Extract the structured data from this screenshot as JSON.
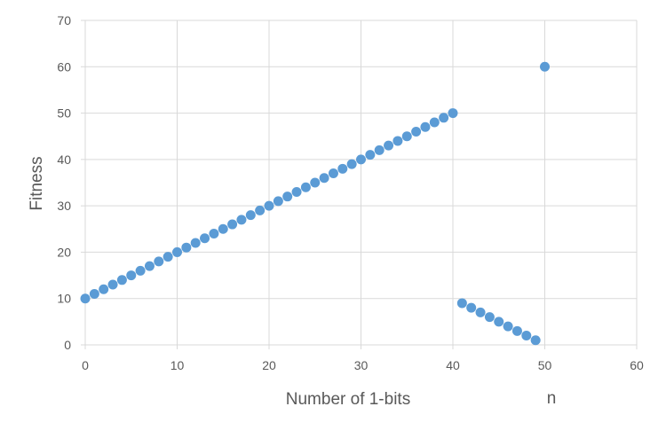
{
  "chart_data": {
    "type": "scatter",
    "title": "",
    "xlabel": "Number of 1-bits",
    "ylabel": "Fitness",
    "annotation": "n",
    "xlim": [
      0,
      60
    ],
    "ylim": [
      0,
      70
    ],
    "xticks": [
      0,
      10,
      20,
      30,
      40,
      50,
      60
    ],
    "yticks": [
      0,
      10,
      20,
      30,
      40,
      50,
      60,
      70
    ],
    "xtick_labels": [
      "0",
      "10",
      "20",
      "30",
      "40",
      "50",
      "60"
    ],
    "ytick_labels": [
      "0",
      "10",
      "20",
      "30",
      "40",
      "50",
      "60",
      "70"
    ],
    "grid": true,
    "legend": "none",
    "marker_color": "#5b9bd5",
    "series": [
      {
        "x": [
          0,
          1,
          2,
          3,
          4,
          5,
          6,
          7,
          8,
          9,
          10,
          11,
          12,
          13,
          14,
          15,
          16,
          17,
          18,
          19,
          20,
          21,
          22,
          23,
          24,
          25,
          26,
          27,
          28,
          29,
          30,
          31,
          32,
          33,
          34,
          35,
          36,
          37,
          38,
          39,
          40,
          41,
          42,
          43,
          44,
          45,
          46,
          47,
          48,
          49,
          50
        ],
        "y": [
          10,
          11,
          12,
          13,
          14,
          15,
          16,
          17,
          18,
          19,
          20,
          21,
          22,
          23,
          24,
          25,
          26,
          27,
          28,
          29,
          30,
          31,
          32,
          33,
          34,
          35,
          36,
          37,
          38,
          39,
          40,
          41,
          42,
          43,
          44,
          45,
          46,
          47,
          48,
          49,
          50,
          9,
          8,
          7,
          6,
          5,
          4,
          3,
          2,
          1,
          60
        ]
      }
    ]
  }
}
